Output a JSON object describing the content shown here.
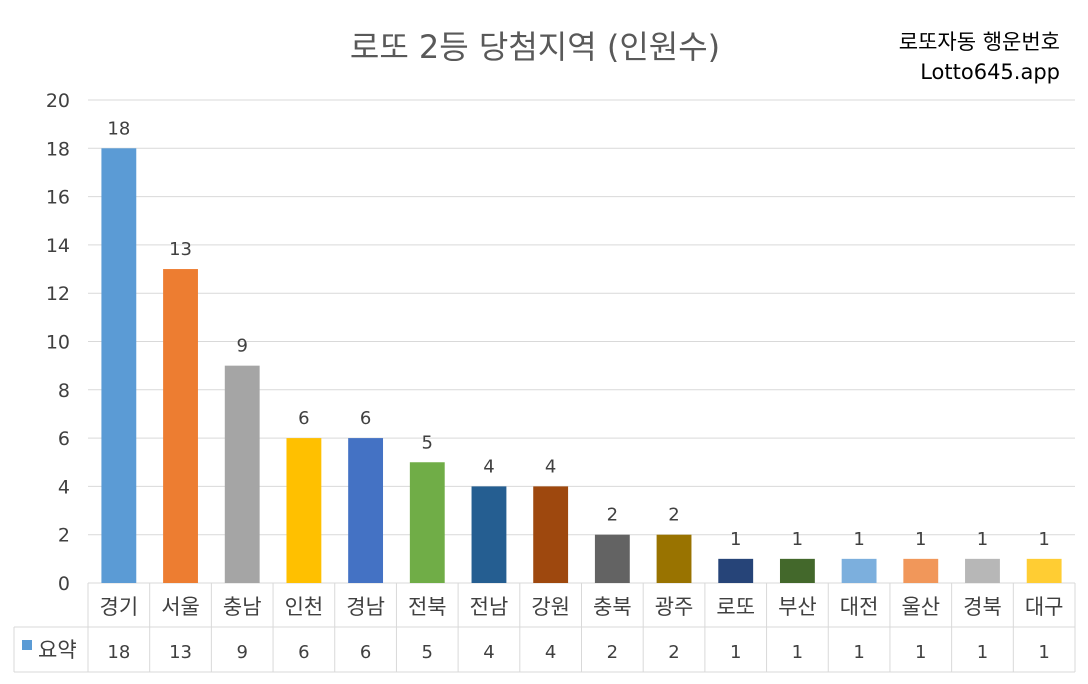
{
  "title": "로또 2등 당첨지역 (인원수)",
  "brand": {
    "line1": "로또자동 행운번호",
    "line2": "Lotto645.app"
  },
  "chart_data": {
    "type": "bar",
    "title": "로또 2등 당첨지역 (인원수)",
    "categories": [
      "경기",
      "서울",
      "충남",
      "인천",
      "경남",
      "전북",
      "전남",
      "강원",
      "충북",
      "광주",
      "로또",
      "부산",
      "대전",
      "울산",
      "경북",
      "대구"
    ],
    "values": [
      18,
      13,
      9,
      6,
      6,
      5,
      4,
      4,
      2,
      2,
      1,
      1,
      1,
      1,
      1,
      1
    ],
    "colors": [
      "#5b9bd5",
      "#ed7d31",
      "#a5a5a5",
      "#ffc000",
      "#4472c4",
      "#70ad47",
      "#255e91",
      "#9e480e",
      "#636363",
      "#997300",
      "#264478",
      "#43682b",
      "#7cafdd",
      "#f1975a",
      "#b7b7b7",
      "#ffcd33"
    ],
    "series": [
      {
        "name": "요약",
        "values": [
          18,
          13,
          9,
          6,
          6,
          5,
          4,
          4,
          2,
          2,
          1,
          1,
          1,
          1,
          1,
          1
        ],
        "color": "#5b9bd5"
      }
    ],
    "ylim": [
      0,
      20
    ],
    "yticks": [
      0,
      2,
      4,
      6,
      8,
      10,
      12,
      14,
      16,
      18,
      20
    ],
    "grid": true,
    "data_table": true
  }
}
